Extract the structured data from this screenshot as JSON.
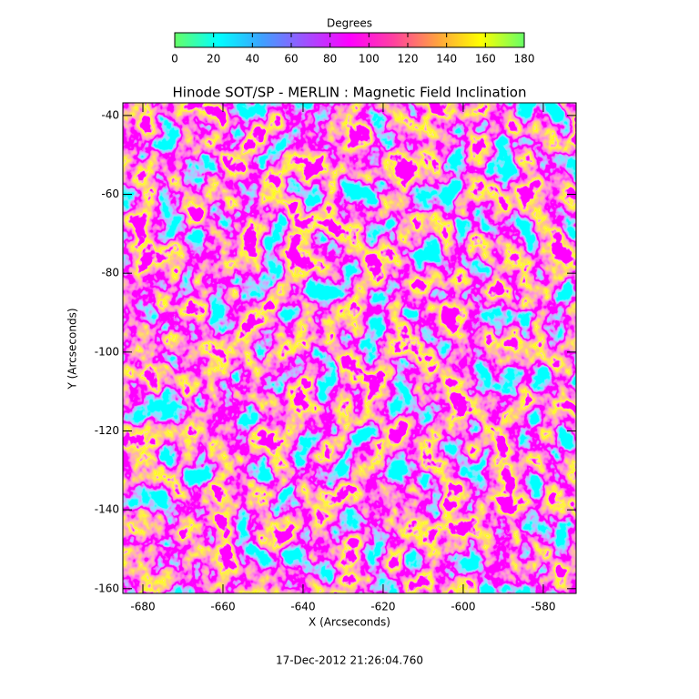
{
  "chart_data": {
    "type": "heatmap",
    "title": "Hinode SOT/SP - MERLIN : Magnetic Field Inclination",
    "xlabel": "X (Arcseconds)",
    "ylabel": "Y (Arcseconds)",
    "xlim": [
      -685,
      -571.8
    ],
    "ylim": [
      -161.2,
      -36.8
    ],
    "xticks": [
      -680,
      -660,
      -640,
      -620,
      -600,
      -580
    ],
    "yticks": [
      -160,
      -140,
      -120,
      -100,
      -80,
      -60,
      -40
    ],
    "colorbar": {
      "label": "Degrees",
      "lim": [
        0,
        180
      ],
      "ticks": [
        0,
        20,
        40,
        60,
        80,
        100,
        120,
        140,
        160,
        180
      ],
      "colormap": [
        "#66ff66",
        "#00ffff",
        "#3fa0ff",
        "#a050ff",
        "#ff00ff",
        "#ff40a0",
        "#ffa040",
        "#ffff00",
        "#66ff66"
      ]
    },
    "footnote": "17-Dec-2012 21:26:04.760"
  }
}
